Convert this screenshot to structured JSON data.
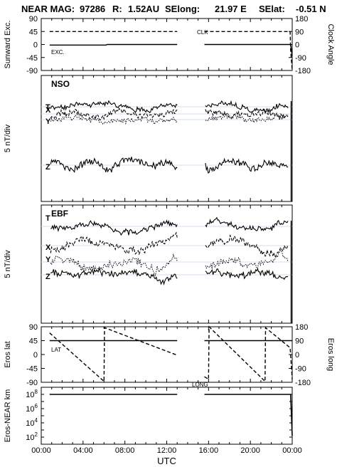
{
  "header": {
    "instrument": "NEAR MAG:",
    "date_code": "97286",
    "r_label": "R:",
    "r_value": "1.52AU",
    "selong_label": "SElong:",
    "selong_value": "21.97 E",
    "selat_label": "SElat:",
    "selat_value": "-0.51 N"
  },
  "x_axis": {
    "label": "UTC",
    "ticks": [
      "00:00",
      "04:00",
      "08:00",
      "12:00",
      "16:00",
      "20:00",
      "00:00"
    ],
    "tick_hours": [
      0,
      4,
      8,
      12,
      16,
      20,
      24
    ],
    "range_hours": [
      0,
      24
    ]
  },
  "chart_data": [
    {
      "type": "line",
      "panel": "sunward-clock",
      "ylabel_left": "Sunward Exc.",
      "ylabel_right": "Clock Angle",
      "left_ticks": [
        "90",
        "45",
        "0",
        "-45",
        "-90"
      ],
      "left_tick_values": [
        90,
        45,
        0,
        -45,
        -90
      ],
      "right_ticks": [
        "180",
        "90",
        "0",
        "-90",
        "-180"
      ],
      "ylim": [
        -90,
        90
      ],
      "annotations": [
        "CLK",
        "EXC."
      ],
      "gap_hours": [
        13.0,
        15.6
      ],
      "series": [
        {
          "label": "CLK",
          "style": "dashed",
          "x": [
            0.8,
            13.0,
            15.6,
            23.8,
            23.85,
            24.0
          ],
          "y": [
            45,
            45,
            45,
            45,
            -20,
            -90
          ]
        },
        {
          "label": "EXC.",
          "style": "solid",
          "x": [
            0.8,
            6.2,
            6.3,
            13.0,
            15.6,
            23.85,
            24.0
          ],
          "y": [
            -2,
            -2,
            0,
            0,
            0,
            0,
            -40
          ]
        }
      ]
    },
    {
      "type": "line",
      "panel": "NSO",
      "panel_label": "NSO",
      "ylabel": "5 nT/div",
      "component_labels": [
        "T",
        "X",
        "Y",
        "Z"
      ]
    },
    {
      "type": "line",
      "panel": "EBF",
      "panel_label": "EBF",
      "ylabel": "5 nT/div",
      "component_labels": [
        "T",
        "X",
        "Y",
        "Z"
      ]
    },
    {
      "type": "line",
      "panel": "eros-lat-long",
      "ylabel_left": "Eros lat",
      "ylabel_right": "Eros long",
      "left_ticks": [
        "90",
        "45",
        "0",
        "-45",
        "-90"
      ],
      "left_tick_values": [
        90,
        45,
        0,
        -45,
        -90
      ],
      "right_ticks": [
        "180",
        "90",
        "0",
        "-90",
        "-180"
      ],
      "ylim": [
        -90,
        90
      ],
      "annotations": [
        "LAT",
        "LONG"
      ],
      "series": [
        {
          "label": "LAT",
          "style": "solid",
          "x": [
            0.8,
            13.0,
            15.6,
            24.0
          ],
          "y": [
            45,
            45,
            45,
            45
          ]
        },
        {
          "label": "LONG",
          "style": "dashed",
          "x": [
            0.8,
            6.0,
            6.05,
            13.0,
            15.6,
            16.0,
            16.05,
            21.4,
            21.45,
            23.8,
            24.0
          ],
          "y": [
            70,
            -87,
            87,
            -2,
            -72,
            -80,
            90,
            -87,
            87,
            22,
            -80
          ]
        }
      ]
    },
    {
      "type": "line",
      "panel": "eros-near-range",
      "ylabel": "Eros-NEAR km",
      "yscale": "log",
      "ytick_labels": [
        "10^8",
        "10^6",
        "10^4",
        "10^2"
      ],
      "ytick_values": [
        100000000,
        1000000,
        10000,
        100
      ],
      "ylim": [
        10,
        1000000000
      ],
      "series": [
        {
          "label": "range",
          "style": "solid",
          "x": [
            0.8,
            13.0,
            15.6,
            23.85,
            24.0
          ],
          "y": [
            100000000,
            100000000,
            100000000,
            100000000,
            150
          ]
        }
      ]
    }
  ]
}
